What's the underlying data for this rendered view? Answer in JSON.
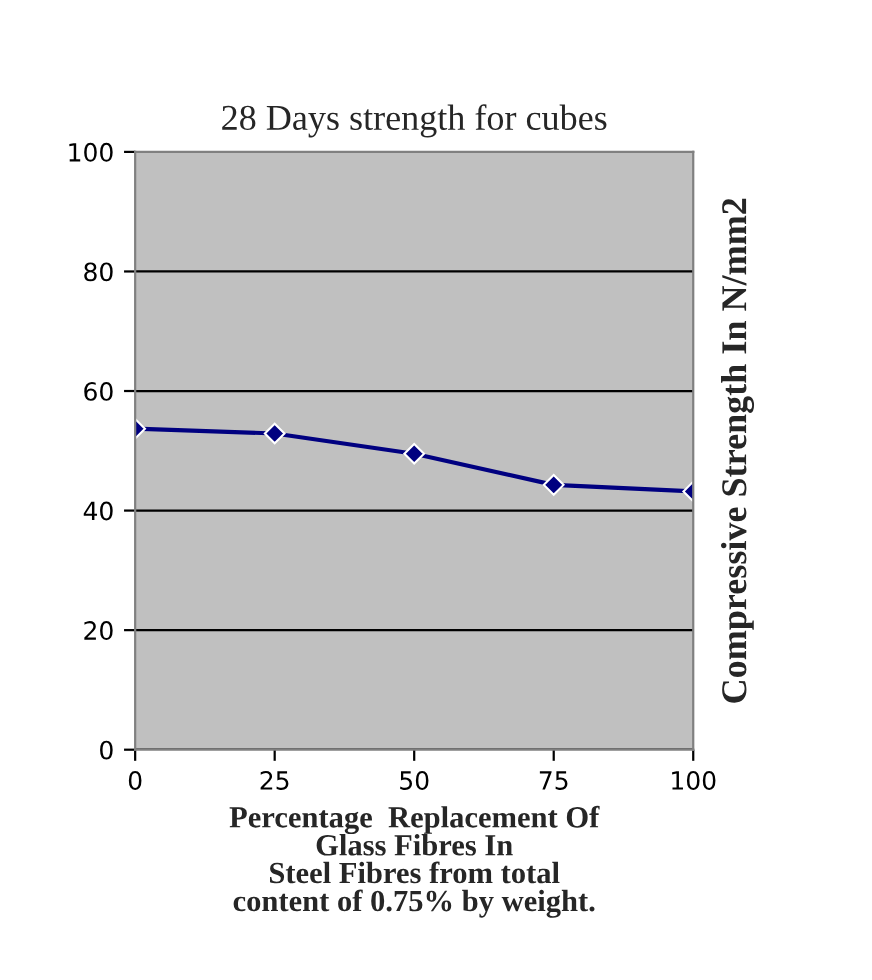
{
  "chart_data": {
    "type": "line",
    "title": "28 Days strength for cubes",
    "xlabel": "Percentage  Replacement Of\nGlass Fibres In\nSteel Fibres from total\ncontent of 0.75% by weight.",
    "ylabel": "Compressive Strength In N/mm2",
    "x": [
      0,
      25,
      50,
      75,
      100
    ],
    "series": [
      {
        "color": "#000080",
        "values": [
          53.7,
          52.9,
          49.5,
          44.3,
          43.2
        ]
      }
    ],
    "xlim": [
      0,
      100
    ],
    "xticks": [
      0,
      25,
      50,
      75,
      100
    ],
    "ylim": [
      0,
      100
    ],
    "yticks": [
      0,
      20,
      40,
      60,
      80,
      100
    ],
    "grid": "y",
    "marker": "diamond",
    "line_style": "solid",
    "legend": false
  }
}
